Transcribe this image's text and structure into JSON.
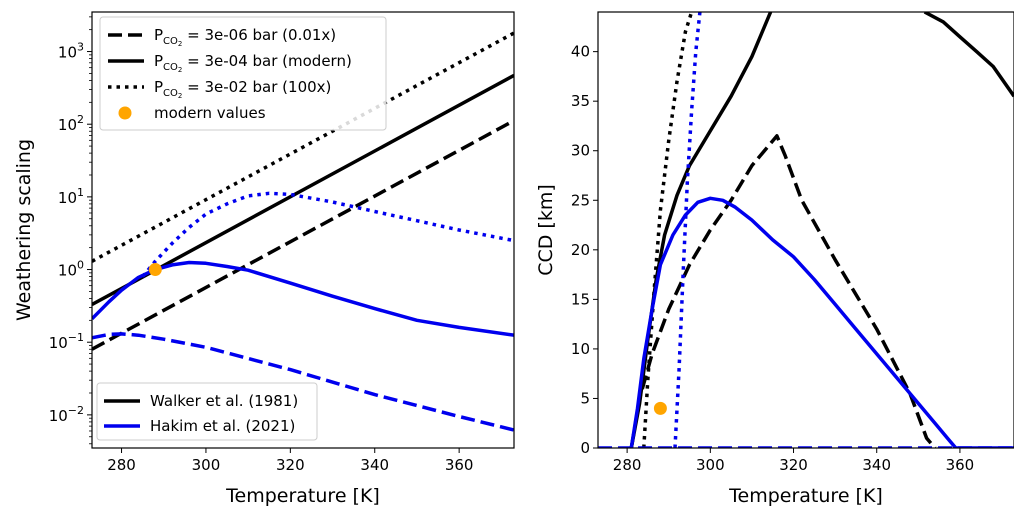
{
  "chart_data": [
    {
      "type": "line",
      "xlabel": "Temperature [K]",
      "ylabel": "Weathering scaling",
      "y_scale": "log",
      "xlim": [
        273,
        373
      ],
      "ylim": [
        0.0035,
        3500
      ],
      "x_ticks": [
        280,
        300,
        320,
        340,
        360
      ],
      "y_ticks": [
        {
          "value": 0.01,
          "base": "10",
          "exp": "−2"
        },
        {
          "value": 0.1,
          "base": "10",
          "exp": "−1"
        },
        {
          "value": 1,
          "base": "10",
          "exp": "0"
        },
        {
          "value": 10,
          "base": "10",
          "exp": "1"
        },
        {
          "value": 100,
          "base": "10",
          "exp": "2"
        },
        {
          "value": 1000,
          "base": "10",
          "exp": "3"
        }
      ],
      "legend_top": {
        "placement": "upper left",
        "entries": [
          {
            "prefix": "P",
            "sub": "CO",
            "subsub": "2",
            "text": " = 3e-06 bar (0.01x)",
            "style": "dashed"
          },
          {
            "prefix": "P",
            "sub": "CO",
            "subsub": "2",
            "text": " = 3e-04 bar (modern)",
            "style": "solid"
          },
          {
            "prefix": "P",
            "sub": "CO",
            "subsub": "2",
            "text": " = 3e-02 bar (100x)",
            "style": "dotted"
          },
          {
            "text": "modern values",
            "style": "marker",
            "color": "#ffa500"
          }
        ]
      },
      "legend_bottom": {
        "placement": "lower left",
        "entries": [
          {
            "text": "Walker et al. (1981)",
            "color": "#000000"
          },
          {
            "text": "Hakim et al. (2021)",
            "color": "#0000ee"
          }
        ]
      },
      "series": [
        {
          "model": "Walker",
          "pco2": "0.01x",
          "style": "dashed",
          "color": "#000000",
          "x": [
            273,
            373
          ],
          "y": [
            0.08,
            112
          ]
        },
        {
          "model": "Walker",
          "pco2": "modern",
          "style": "solid",
          "color": "#000000",
          "x": [
            273,
            373
          ],
          "y": [
            0.33,
            470
          ]
        },
        {
          "model": "Walker",
          "pco2": "100x",
          "style": "dotted",
          "color": "#000000",
          "x": [
            273,
            373
          ],
          "y": [
            1.3,
            1800
          ]
        },
        {
          "model": "Hakim",
          "pco2": "0.01x",
          "style": "dashed",
          "color": "#0000ee",
          "x": [
            273,
            277,
            280,
            284,
            290,
            300,
            320,
            340,
            360,
            373
          ],
          "y": [
            0.115,
            0.128,
            0.13,
            0.125,
            0.11,
            0.085,
            0.042,
            0.019,
            0.0095,
            0.0062
          ]
        },
        {
          "model": "Hakim",
          "pco2": "modern",
          "style": "solid",
          "color": "#0000ee",
          "x": [
            273,
            277,
            280,
            284,
            288,
            292,
            296,
            300,
            305,
            310,
            320,
            330,
            340,
            350,
            360,
            373
          ],
          "y": [
            0.21,
            0.36,
            0.52,
            0.78,
            1.0,
            1.16,
            1.25,
            1.22,
            1.1,
            0.98,
            0.65,
            0.43,
            0.29,
            0.2,
            0.16,
            0.125
          ]
        },
        {
          "model": "Hakim",
          "pco2": "100x",
          "style": "dotted",
          "color": "#0000ee",
          "x": [
            285,
            288,
            292,
            296,
            300,
            305,
            310,
            315,
            320,
            330,
            340,
            350,
            360,
            373
          ],
          "y": [
            0.8,
            1.3,
            2.3,
            3.8,
            5.8,
            8.0,
            10.3,
            11.2,
            10.8,
            8.5,
            6.3,
            4.7,
            3.5,
            2.5
          ]
        }
      ],
      "modern_point": {
        "x": 288,
        "y": 1.0,
        "color": "#ffa500"
      }
    },
    {
      "type": "line",
      "xlabel": "Temperature [K]",
      "ylabel": "CCD [km]",
      "xlim": [
        273,
        373
      ],
      "ylim": [
        0,
        44
      ],
      "x_ticks": [
        280,
        300,
        320,
        340,
        360
      ],
      "y_ticks": [
        0,
        5,
        10,
        15,
        20,
        25,
        30,
        35,
        40
      ],
      "series": [
        {
          "model": "Walker",
          "pco2": "0.01x",
          "style": "dashed",
          "color": "#000000",
          "x": [
            281,
            283,
            286,
            290,
            295,
            300,
            305,
            310,
            314,
            316,
            318,
            322,
            330,
            340,
            348,
            352,
            354
          ],
          "y": [
            0,
            5,
            9.5,
            14,
            18.5,
            22,
            25,
            28.5,
            30.5,
            31.5,
            29.5,
            25,
            19,
            12,
            5.5,
            1,
            0
          ]
        },
        {
          "model": "Walker",
          "pco2": "modern",
          "style": "solid",
          "color": "#000000",
          "x": [
            281,
            283,
            285,
            287,
            289,
            292,
            295,
            300,
            305,
            310,
            314.5
          ],
          "y": [
            0,
            4.5,
            11,
            17,
            21.5,
            25.5,
            28.5,
            32,
            35.5,
            39.5,
            44
          ]
        },
        {
          "model": "Walker",
          "pco2": "modern",
          "style": "solid",
          "color": "#000000",
          "x": [
            351.5,
            356,
            360,
            364,
            368,
            373
          ],
          "y": [
            44,
            43,
            41.5,
            40,
            38.5,
            35.5
          ]
        },
        {
          "model": "Walker",
          "pco2": "100x",
          "style": "dotted",
          "color": "#000000",
          "x": [
            284,
            285,
            286.5,
            288,
            290,
            292,
            294,
            295.5
          ],
          "y": [
            0,
            7,
            16,
            24,
            31,
            37,
            42,
            44
          ]
        },
        {
          "model": "Hakim",
          "pco2": "0.01x",
          "style": "dashed",
          "color": "#0000ee",
          "x": [
            273,
            373
          ],
          "y": [
            0,
            0
          ]
        },
        {
          "model": "Hakim",
          "pco2": "modern",
          "style": "solid",
          "color": "#0000ee",
          "x": [
            281,
            282.5,
            284,
            286,
            288,
            291,
            294,
            297,
            300,
            303,
            306,
            310,
            315,
            320,
            325,
            330,
            335,
            340,
            345,
            350,
            354,
            357,
            359,
            373
          ],
          "y": [
            0,
            4,
            9,
            14,
            18.5,
            21.5,
            23.5,
            24.8,
            25.2,
            25,
            24.3,
            23,
            21,
            19.3,
            17,
            14.5,
            12,
            9.5,
            7,
            4.5,
            2.5,
            1,
            0,
            0
          ]
        },
        {
          "model": "Hakim",
          "pco2": "100x",
          "style": "dotted",
          "color": "#0000ee",
          "x": [
            291.5,
            292.5,
            293.5,
            294.5,
            295.5,
            296.5,
            297.5
          ],
          "y": [
            0,
            8,
            18,
            27,
            34,
            40,
            44
          ]
        }
      ],
      "modern_point": {
        "x": 288,
        "y": 4,
        "color": "#ffa500"
      }
    }
  ]
}
